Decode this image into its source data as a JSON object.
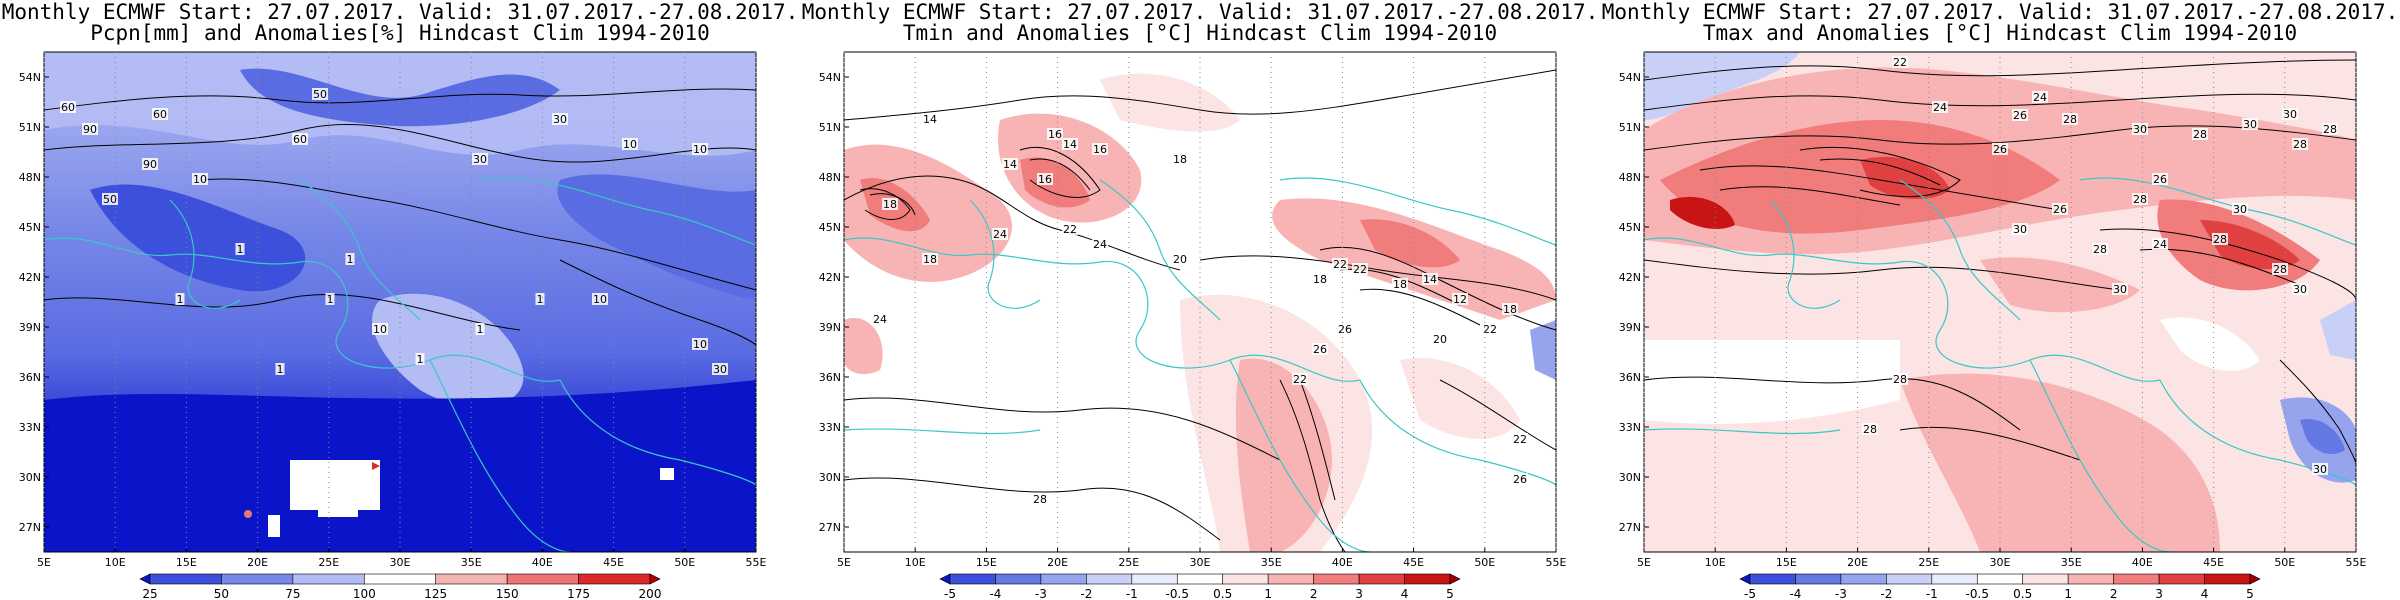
{
  "panels": [
    {
      "title_line1": "Monthly ECMWF Start: 27.07.2017. Valid: 31.07.2017.-27.08.2017.",
      "title_line2": "Pcpn[mm] and Anomalies[%] Hindcast Clim 1994-2010",
      "field": "precipitation",
      "colorbar_labels": [
        "25",
        "50",
        "75",
        "100",
        "125",
        "150",
        "175",
        "200"
      ],
      "colorbar_colors": [
        "#0a14c8",
        "#3c50dc",
        "#7888e8",
        "#b4bcf4",
        "#ffffff",
        "#f4b4b4",
        "#ec7474",
        "#dc2828",
        "#b40000"
      ],
      "contour_labels": [
        "60",
        "60",
        "90",
        "60",
        "90",
        "50",
        "30",
        "30",
        "10",
        "10",
        "50",
        "10",
        "1",
        "1",
        "10",
        "1",
        "1",
        "1",
        "10",
        "30",
        "10",
        "1",
        "1",
        "1"
      ]
    },
    {
      "title_line1": "Monthly ECMWF Start: 27.07.2017. Valid: 31.07.2017.-27.08.2017.",
      "title_line2": "Tmin and Anomalies [°C] Hindcast Clim 1994-2010",
      "field": "tmin",
      "colorbar_labels": [
        "-5",
        "-4",
        "-3",
        "-2",
        "-1",
        "-0.5",
        "0.5",
        "1",
        "2",
        "3",
        "4",
        "5"
      ],
      "colorbar_colors": [
        "#0a14c8",
        "#3c50dc",
        "#6478e4",
        "#96a4ee",
        "#c8d0f8",
        "#e8ecfc",
        "#ffffff",
        "#fce4e4",
        "#f8b4b4",
        "#f07c7c",
        "#e04040",
        "#c81414",
        "#a00000"
      ],
      "contour_labels": [
        "14",
        "16",
        "16",
        "18",
        "14",
        "14",
        "16",
        "18",
        "18",
        "22",
        "24",
        "24",
        "20",
        "18",
        "22",
        "22",
        "18",
        "14",
        "12",
        "18",
        "22",
        "20",
        "26",
        "26",
        "22",
        "22",
        "24",
        "28",
        "26"
      ]
    },
    {
      "title_line1": "Monthly ECMWF Start: 27.07.2017. Valid: 31.07.2017.-27.08.2017.",
      "title_line2": "Tmax and Anomalies [°C] Hindcast Clim 1994-2010",
      "field": "tmax",
      "colorbar_labels": [
        "-5",
        "-4",
        "-3",
        "-2",
        "-1",
        "-0.5",
        "0.5",
        "1",
        "2",
        "3",
        "4",
        "5"
      ],
      "colorbar_colors": [
        "#0a14c8",
        "#3c50dc",
        "#6478e4",
        "#96a4ee",
        "#c8d0f8",
        "#e8ecfc",
        "#ffffff",
        "#fce4e4",
        "#f8b4b4",
        "#f07c7c",
        "#e04040",
        "#c81414",
        "#a00000"
      ],
      "contour_labels": [
        "22",
        "24",
        "26",
        "24",
        "28",
        "30",
        "28",
        "30",
        "30",
        "28",
        "26",
        "26",
        "28",
        "30",
        "28",
        "30",
        "26",
        "28",
        "24",
        "28",
        "28",
        "30",
        "30",
        "28",
        "28",
        "30"
      ]
    }
  ],
  "lat_labels": [
    "54N",
    "51N",
    "48N",
    "45N",
    "42N",
    "39N",
    "36N",
    "33N",
    "30N",
    "27N"
  ],
  "lon_labels": [
    "5E",
    "10E",
    "15E",
    "20E",
    "25E",
    "30E",
    "35E",
    "40E",
    "45E",
    "50E",
    "55E"
  ]
}
